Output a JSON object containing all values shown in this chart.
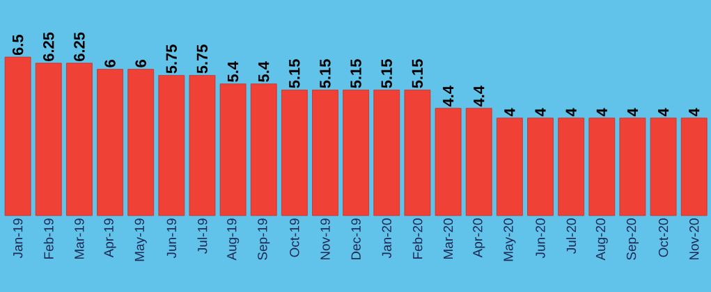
{
  "chart_data": {
    "type": "bar",
    "categories": [
      "Jan-19",
      "Feb-19",
      "Mar-19",
      "Apr-19",
      "May-19",
      "Jun-19",
      "Jul-19",
      "Aug-19",
      "Sep-19",
      "Oct-19",
      "Nov-19",
      "Dec-19",
      "Jan-20",
      "Feb-20",
      "Mar-20",
      "Apr-20",
      "May-20",
      "Jun-20",
      "Jul-20",
      "Aug-20",
      "Sep-20",
      "Oct-20",
      "Nov-20"
    ],
    "values": [
      6.5,
      6.25,
      6.25,
      6,
      6,
      5.75,
      5.75,
      5.4,
      5.4,
      5.15,
      5.15,
      5.15,
      5.15,
      5.15,
      4.4,
      4.4,
      4,
      4,
      4,
      4,
      4,
      4,
      4
    ],
    "color": "#ef4136",
    "data_labels": true
  }
}
